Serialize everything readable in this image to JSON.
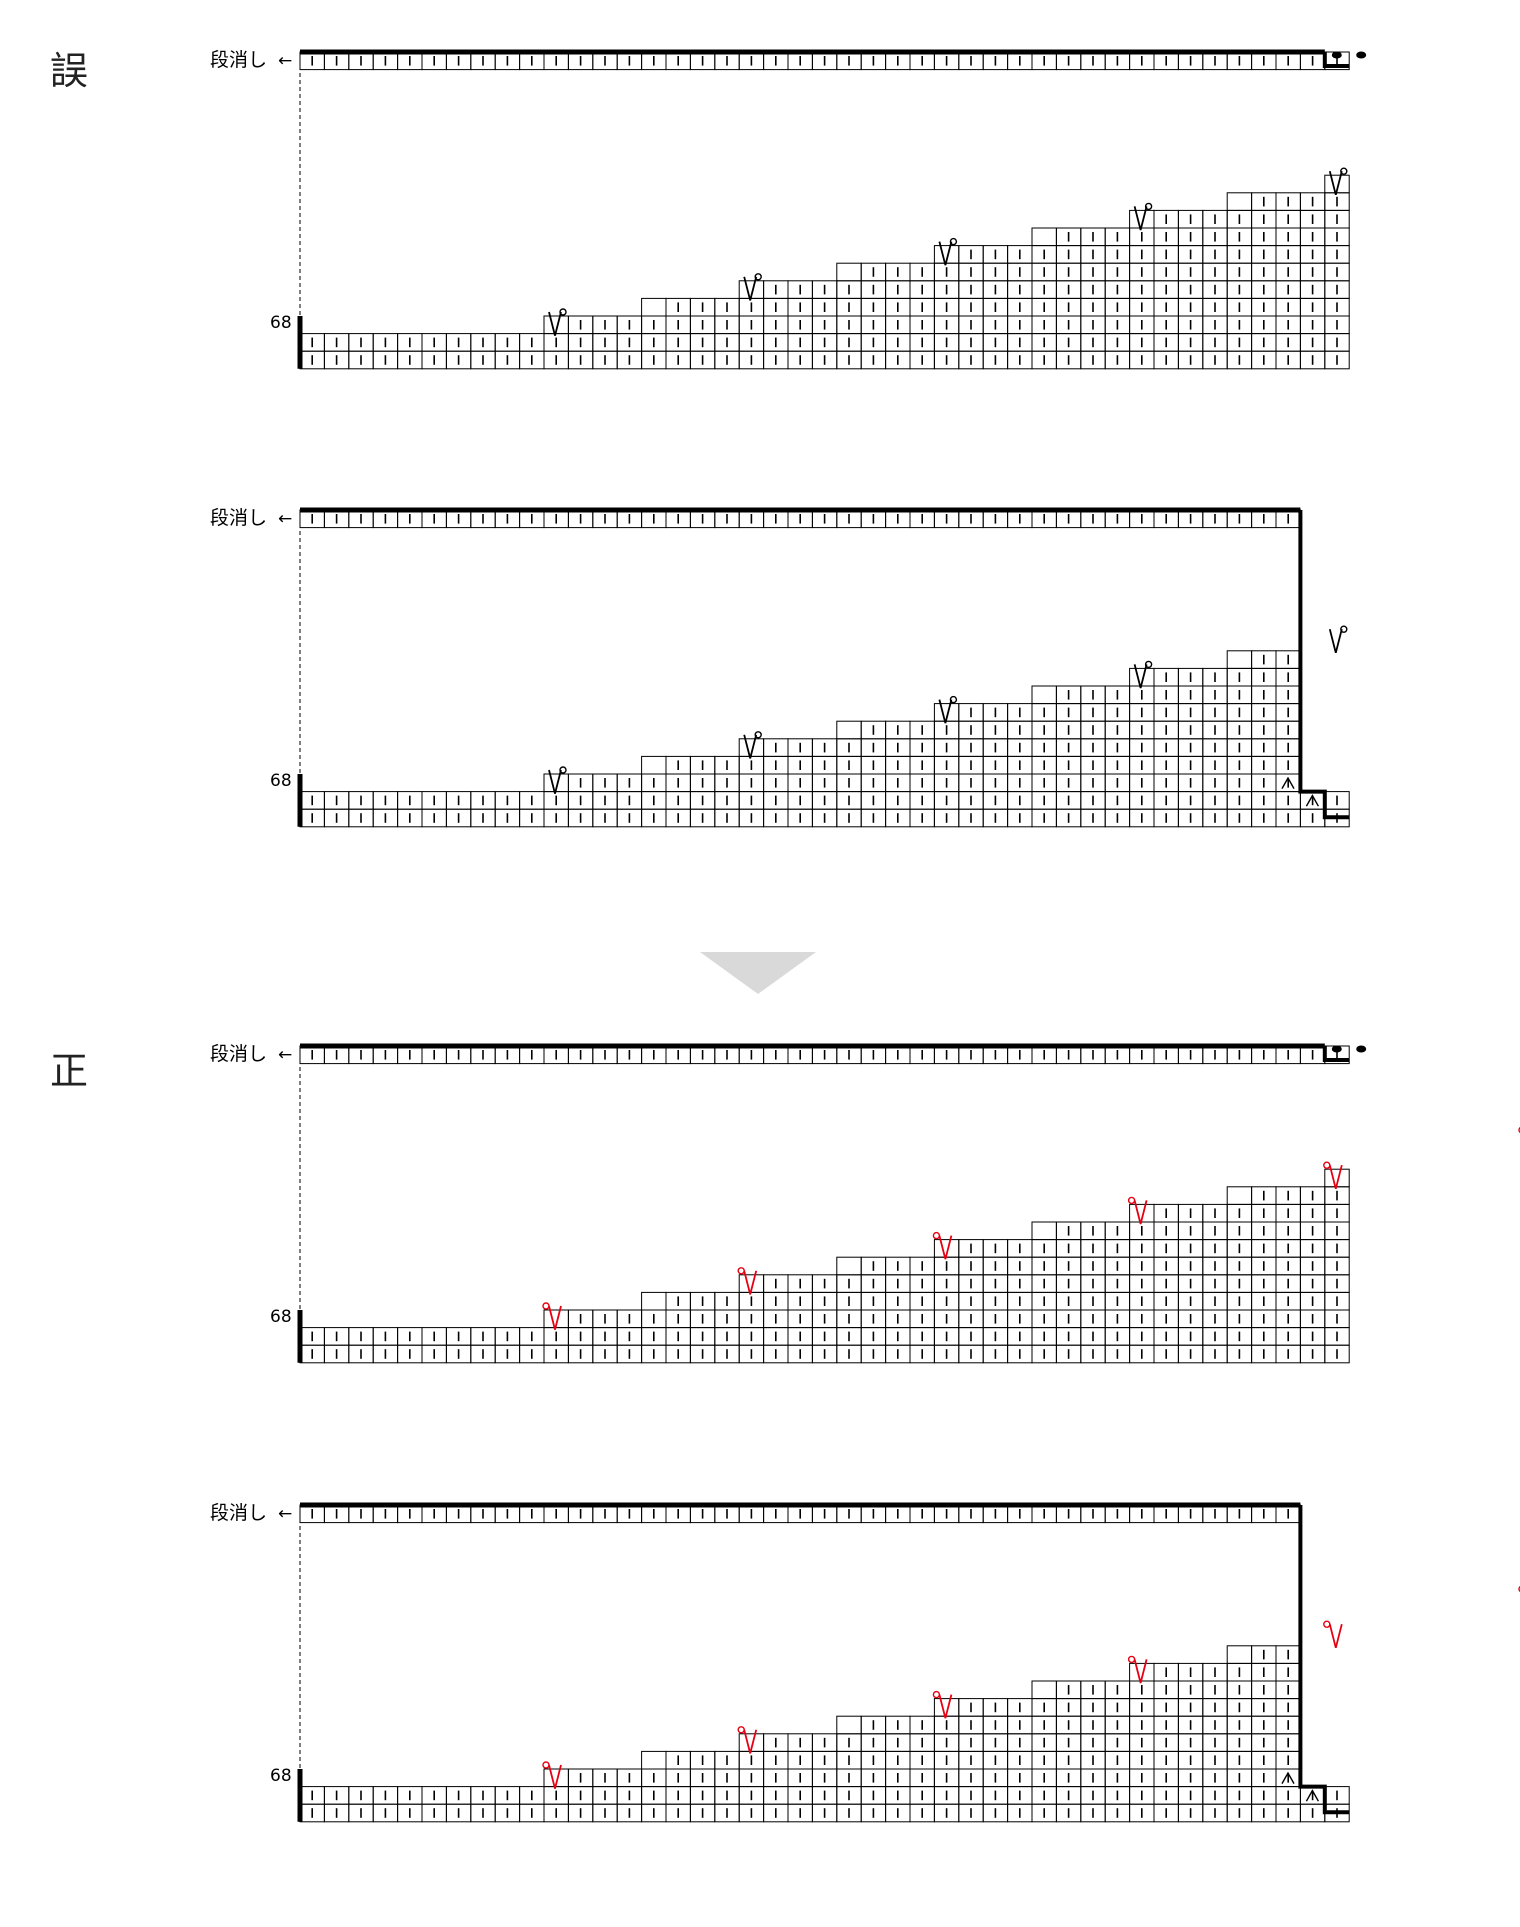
{
  "sections": [
    {
      "id": "wrong",
      "label": "誤"
    },
    {
      "id": "correct",
      "label": "正"
    }
  ],
  "chart_labels": {
    "row_cast_off": "段消し",
    "arrow": "←",
    "row_number": "68"
  },
  "symbols": {
    "knit": "knit-stitch-bar",
    "slip": "slip-stitch-v",
    "decrease": "right-decrease"
  },
  "colors": {
    "grid": "#000000",
    "highlight": "#e60012",
    "arrow_triangle": "#d9d9d9"
  },
  "charts": [
    {
      "name": "wrong-chart-1",
      "variant": "wrong",
      "right_edge": "purl-cap"
    },
    {
      "name": "wrong-chart-2",
      "variant": "wrong",
      "right_edge": "step-down"
    },
    {
      "name": "correct-chart-1",
      "variant": "correct",
      "right_edge": "purl-cap"
    },
    {
      "name": "correct-chart-2",
      "variant": "correct",
      "right_edge": "step-down"
    }
  ]
}
